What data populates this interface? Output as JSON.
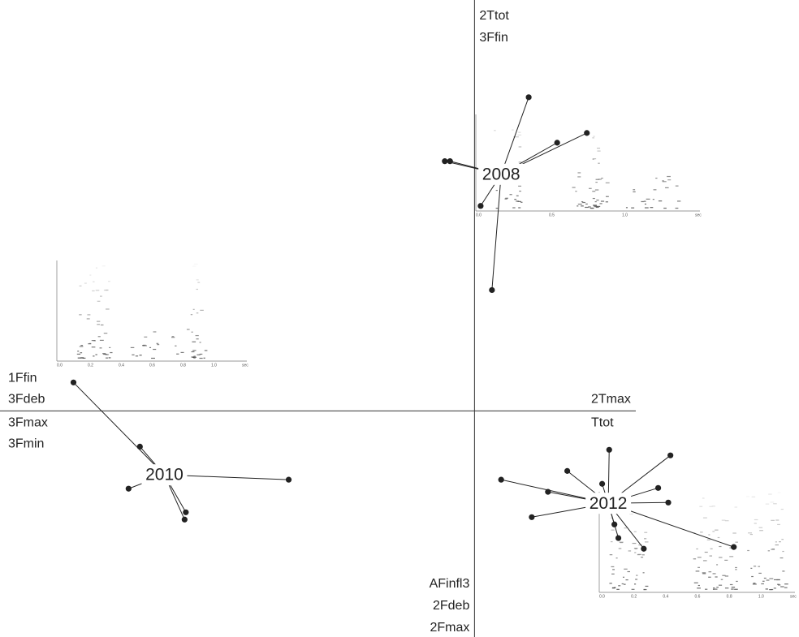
{
  "chart_data": {
    "type": "scatter",
    "xlim": [
      -1.55,
      1.06
    ],
    "ylim": [
      -0.93,
      1.69
    ],
    "color": "#222222",
    "axis_labels": {
      "top": [
        "2Ttot",
        "3Ffin"
      ],
      "bottom": [
        "AFinfl3",
        "2Fdeb",
        "2Fmax"
      ],
      "left_above": [
        "1Ffin",
        "3Fdeb"
      ],
      "left_below": [
        "3Fmax",
        "3Fmin"
      ],
      "right_above": [
        "2Tmax"
      ],
      "right_below": [
        "Ttot"
      ]
    },
    "groups": [
      {
        "name": "2008",
        "centroid": {
          "x": 0.087,
          "y": 0.973
        },
        "points": {
          "x": [
            0.177,
            0.27,
            0.367,
            -0.097,
            -0.08,
            0.02,
            0.057
          ],
          "y": [
            1.29,
            1.103,
            1.143,
            1.027,
            1.027,
            0.843,
            0.497
          ]
        },
        "inset_ticks": [
          "0.0",
          "0.5",
          "1.0",
          "sec"
        ]
      },
      {
        "name": "2010",
        "centroid": {
          "x": -1.013,
          "y": -0.263
        },
        "points": {
          "x": [
            -1.31,
            -1.093,
            -1.13,
            -0.943,
            -0.947,
            -0.607
          ],
          "y": [
            0.117,
            -0.147,
            -0.32,
            -0.417,
            -0.447,
            -0.283
          ]
        },
        "inset_ticks": [
          "0.0",
          "0.2",
          "0.4",
          "0.6",
          "0.8",
          "1.0",
          "sec"
        ]
      },
      {
        "name": "2012",
        "centroid": {
          "x": 0.437,
          "y": -0.38
        },
        "points": {
          "x": [
            0.087,
            0.24,
            0.187,
            0.303,
            0.417,
            0.44,
            0.64,
            0.6,
            0.633,
            0.457,
            0.47,
            0.553,
            0.847
          ],
          "y": [
            -0.283,
            -0.333,
            -0.437,
            -0.247,
            -0.3,
            -0.16,
            -0.183,
            -0.317,
            -0.377,
            -0.467,
            -0.523,
            -0.567,
            -0.56
          ]
        },
        "inset_ticks": [
          "0.0",
          "0.2",
          "0.4",
          "0.6",
          "0.8",
          "1.0",
          "sec"
        ]
      }
    ]
  }
}
